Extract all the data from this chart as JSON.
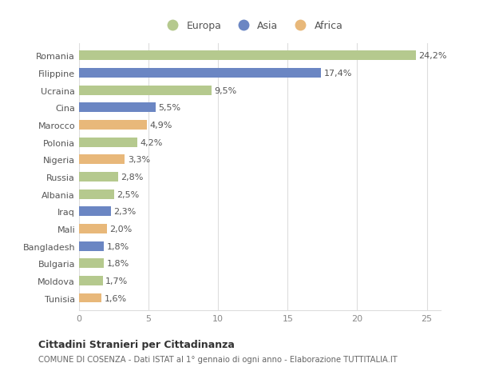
{
  "categories": [
    "Romania",
    "Filippine",
    "Ucraina",
    "Cina",
    "Marocco",
    "Polonia",
    "Nigeria",
    "Russia",
    "Albania",
    "Iraq",
    "Mali",
    "Bangladesh",
    "Bulgaria",
    "Moldova",
    "Tunisia"
  ],
  "values": [
    24.2,
    17.4,
    9.5,
    5.5,
    4.9,
    4.2,
    3.3,
    2.8,
    2.5,
    2.3,
    2.0,
    1.8,
    1.8,
    1.7,
    1.6
  ],
  "labels": [
    "24,2%",
    "17,4%",
    "9,5%",
    "5,5%",
    "4,9%",
    "4,2%",
    "3,3%",
    "2,8%",
    "2,5%",
    "2,3%",
    "2,0%",
    "1,8%",
    "1,8%",
    "1,7%",
    "1,6%"
  ],
  "continents": [
    "Europa",
    "Asia",
    "Europa",
    "Asia",
    "Africa",
    "Europa",
    "Africa",
    "Europa",
    "Europa",
    "Asia",
    "Africa",
    "Asia",
    "Europa",
    "Europa",
    "Africa"
  ],
  "colors": {
    "Europa": "#b5c98e",
    "Asia": "#6b86c3",
    "Africa": "#e8b87a"
  },
  "xlim": [
    0,
    26
  ],
  "xticks": [
    0,
    5,
    10,
    15,
    20,
    25
  ],
  "background_color": "#ffffff",
  "grid_color": "#dddddd",
  "title1": "Cittadini Stranieri per Cittadinanza",
  "title2": "COMUNE DI COSENZA - Dati ISTAT al 1° gennaio di ogni anno - Elaborazione TUTTITALIA.IT",
  "bar_height": 0.55,
  "label_fontsize": 8,
  "tick_fontsize": 8,
  "legend_order": [
    "Europa",
    "Asia",
    "Africa"
  ]
}
